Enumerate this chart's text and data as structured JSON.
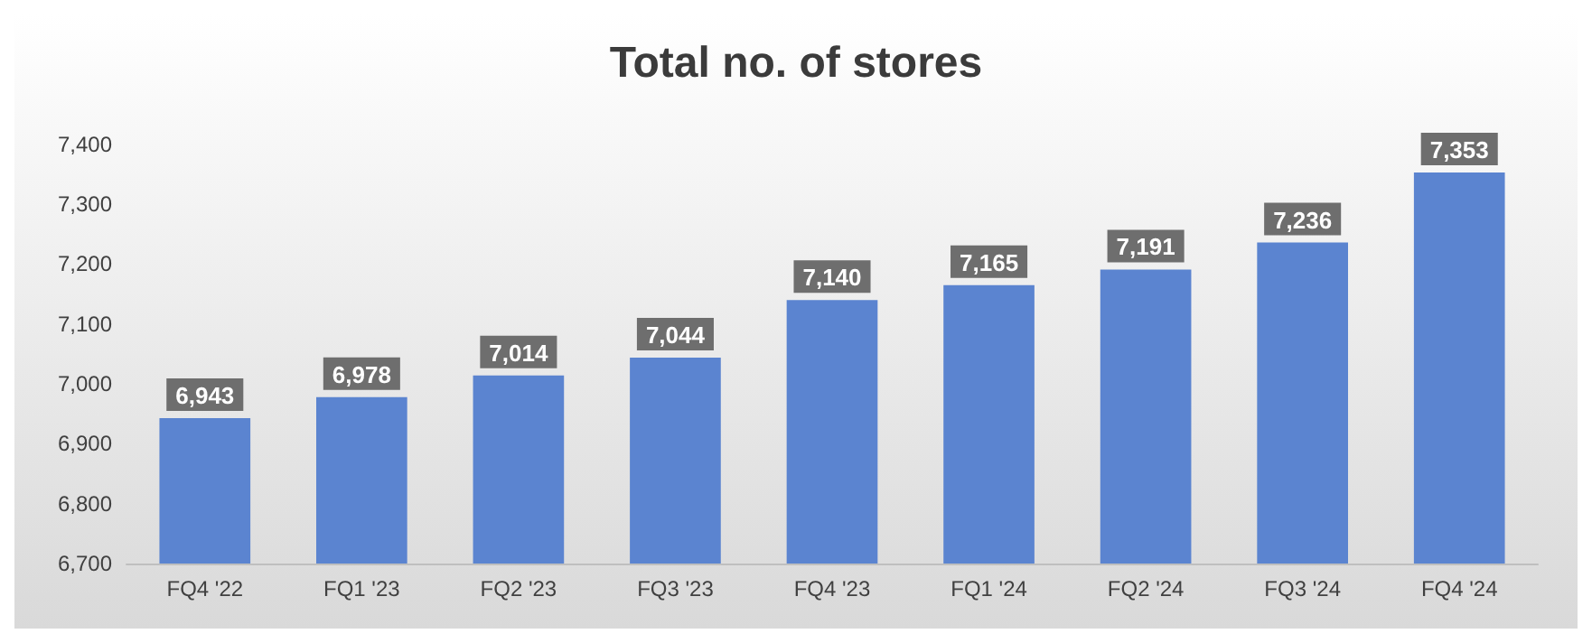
{
  "chart_data": {
    "type": "bar",
    "title": "Total no. of stores",
    "categories": [
      "FQ4 '22",
      "FQ1 '23",
      "FQ2 '23",
      "FQ3 '23",
      "FQ4 '23",
      "FQ1 '24",
      "FQ2 '24",
      "FQ3 '24",
      "FQ4 '24"
    ],
    "values": [
      6943,
      6978,
      7014,
      7044,
      7140,
      7165,
      7191,
      7236,
      7353
    ],
    "value_labels": [
      "6,943",
      "6,978",
      "7,014",
      "7,044",
      "7,140",
      "7,165",
      "7,191",
      "7,236",
      "7,353"
    ],
    "color": "#5b84d0",
    "ylim": [
      6700,
      7430
    ],
    "yticks": [
      {
        "value": 6700,
        "label": "6,700"
      },
      {
        "value": 6800,
        "label": "6,800"
      },
      {
        "value": 6900,
        "label": "6,900"
      },
      {
        "value": 7000,
        "label": "7,000"
      },
      {
        "value": 7100,
        "label": "7,100"
      },
      {
        "value": 7200,
        "label": "7,200"
      },
      {
        "value": 7300,
        "label": "7,300"
      },
      {
        "value": 7400,
        "label": "7,400"
      }
    ],
    "grid": false
  }
}
